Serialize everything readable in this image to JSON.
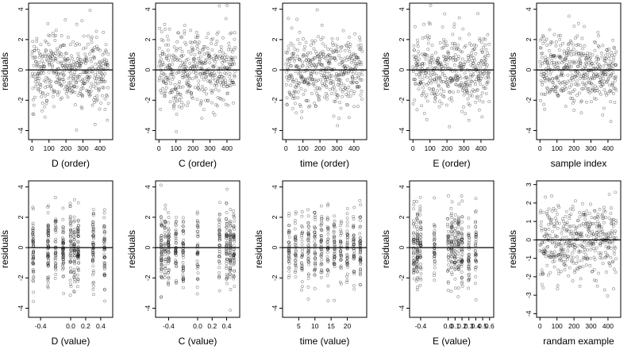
{
  "chart_data": [
    {
      "type": "scatter",
      "xlabel": "D (order)",
      "ylabel": "residuals",
      "xlim": [
        -20,
        475
      ],
      "ylim": [
        -4.6,
        4.4
      ],
      "xticks": [
        0,
        100,
        200,
        300,
        400
      ],
      "yticks": [
        -4,
        -2,
        0,
        2,
        4
      ],
      "ref_y": 0,
      "x_kind": "order",
      "spread": 1.25,
      "seed": 11
    },
    {
      "type": "scatter",
      "xlabel": "C (order)",
      "ylabel": "residuals",
      "xlim": [
        -20,
        475
      ],
      "ylim": [
        -4.6,
        4.4
      ],
      "xticks": [
        0,
        100,
        200,
        300,
        400
      ],
      "yticks": [
        -4,
        -2,
        0,
        2,
        4
      ],
      "ref_y": 0,
      "x_kind": "order",
      "spread": 1.25,
      "seed": 12
    },
    {
      "type": "scatter",
      "xlabel": "time (order)",
      "ylabel": "residuals",
      "xlim": [
        -20,
        475
      ],
      "ylim": [
        -4.6,
        4.4
      ],
      "xticks": [
        0,
        100,
        200,
        300,
        400
      ],
      "yticks": [
        -4,
        -2,
        0,
        2,
        4
      ],
      "ref_y": 0,
      "x_kind": "order",
      "spread": 1.25,
      "seed": 13
    },
    {
      "type": "scatter",
      "xlabel": "E (order)",
      "ylabel": "residuals",
      "xlim": [
        -20,
        475
      ],
      "ylim": [
        -4.6,
        4.4
      ],
      "xticks": [
        0,
        100,
        200,
        300,
        400
      ],
      "yticks": [
        -4,
        -2,
        0,
        2,
        4
      ],
      "ref_y": 0,
      "x_kind": "order",
      "spread": 1.25,
      "seed": 14
    },
    {
      "type": "scatter",
      "xlabel": "sample index",
      "ylabel": "residuals",
      "xlim": [
        -20,
        475
      ],
      "ylim": [
        -4.6,
        4.4
      ],
      "xticks": [
        0,
        100,
        200,
        300,
        400
      ],
      "yticks": [
        -4,
        -2,
        0,
        2,
        4
      ],
      "ref_y": 0,
      "x_kind": "order",
      "spread": 1.2,
      "seed": 15
    },
    {
      "type": "scatter",
      "xlabel": "D (value)",
      "ylabel": "residuals",
      "xlim": [
        -0.56,
        0.56
      ],
      "ylim": [
        -4.6,
        4.4
      ],
      "xticks": [
        -0.4,
        0.0,
        0.2,
        0.4
      ],
      "xtick_labels": [
        "-0.4",
        "0.0",
        "0.2",
        "0.4"
      ],
      "yticks": [
        -4,
        -2,
        0,
        2,
        4
      ],
      "ref_y": 0,
      "x_kind": "cluster",
      "clusters": [
        -0.5,
        -0.3,
        -0.2,
        -0.1,
        0.0,
        0.05,
        0.1,
        0.3,
        0.45
      ],
      "spread": 1.25,
      "seed": 21
    },
    {
      "type": "scatter",
      "xlabel": "C (value)",
      "ylabel": "residuals",
      "xlim": [
        -0.58,
        0.58
      ],
      "ylim": [
        -4.6,
        4.4
      ],
      "xticks": [
        -0.4,
        0.0,
        0.2,
        0.4
      ],
      "xtick_labels": [
        "-0.4",
        "0.0",
        "0.2",
        "0.4"
      ],
      "yticks": [
        -4,
        -2,
        0,
        2,
        4
      ],
      "ref_y": 0,
      "x_kind": "cluster",
      "clusters": [
        -0.5,
        -0.45,
        -0.4,
        -0.3,
        -0.2,
        0.0,
        0.3,
        0.4,
        0.45,
        0.5
      ],
      "spread": 1.25,
      "seed": 22
    },
    {
      "type": "scatter",
      "xlabel": "time (value)",
      "ylabel": "residuals",
      "xlim": [
        0,
        26
      ],
      "ylim": [
        -4.6,
        4.4
      ],
      "xticks": [
        5,
        10,
        15,
        20
      ],
      "xtick_labels": [
        "5",
        "10",
        "15",
        "20"
      ],
      "yticks": [
        -4,
        -2,
        0,
        2,
        4
      ],
      "ref_y": 0,
      "x_kind": "cluster",
      "clusters": [
        2,
        4,
        6,
        8,
        10,
        12,
        14,
        16,
        18,
        20,
        22,
        24
      ],
      "spread": 1.25,
      "seed": 23
    },
    {
      "type": "scatter",
      "xlabel": "E (value)",
      "ylabel": "residuals",
      "xlim": [
        -0.56,
        0.66
      ],
      "ylim": [
        -4.6,
        4.4
      ],
      "xticks": [
        -0.4,
        0.0,
        0.1,
        0.2,
        0.3,
        0.4,
        0.5,
        0.6
      ],
      "xtick_labels": [
        "-0.4",
        "0.0",
        "0.1",
        "0.2",
        "0.3",
        "0.4",
        "0.5",
        "0.6"
      ],
      "yticks": [
        -4,
        -2,
        0,
        2,
        4
      ],
      "ref_y": 0,
      "x_kind": "cluster",
      "clusters": [
        -0.5,
        -0.45,
        -0.4,
        -0.2,
        0.0,
        0.05,
        0.1,
        0.15,
        0.2,
        0.3,
        0.4
      ],
      "spread": 1.25,
      "seed": 24
    },
    {
      "type": "scatter",
      "xlabel": "randam example",
      "ylabel": "residuals",
      "xlim": [
        -20,
        475
      ],
      "ylim": [
        -4.2,
        3.2
      ],
      "xticks": [
        0,
        100,
        200,
        300,
        400
      ],
      "yticks": [
        -4,
        -3,
        -2,
        -1,
        0,
        1,
        2,
        3
      ],
      "ref_y": 0,
      "x_kind": "order",
      "spread": 1.0,
      "seed": 25
    }
  ]
}
